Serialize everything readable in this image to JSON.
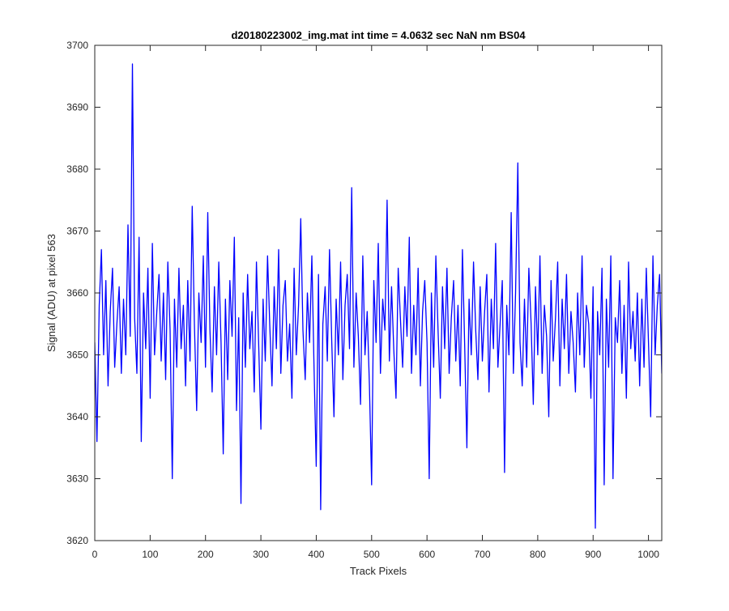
{
  "chart_data": {
    "type": "line",
    "title": "d20180223002_img.mat int time = 4.0632 sec  NaN nm BS04",
    "xlabel": "Track Pixels",
    "ylabel": "Signal (ADU) at pixel 563",
    "xlim": [
      0,
      1024
    ],
    "ylim": [
      3620,
      3700
    ],
    "x_ticks": [
      0,
      100,
      200,
      300,
      400,
      500,
      600,
      700,
      800,
      900,
      1000
    ],
    "y_ticks": [
      3620,
      3630,
      3640,
      3650,
      3660,
      3670,
      3680,
      3690,
      3700
    ],
    "grid": false,
    "line_color": "#0000ff",
    "series": [
      {
        "sampling_note": "approximate trace, one estimated value per 4 track pixels",
        "x_start": 0,
        "x_step": 4,
        "values": [
          3652,
          3636,
          3658,
          3667,
          3650,
          3662,
          3645,
          3657,
          3664,
          3648,
          3655,
          3661,
          3647,
          3659,
          3650,
          3671,
          3653,
          3697,
          3656,
          3647,
          3669,
          3636,
          3660,
          3651,
          3664,
          3643,
          3668,
          3650,
          3657,
          3663,
          3649,
          3660,
          3646,
          3665,
          3654,
          3630,
          3659,
          3648,
          3664,
          3651,
          3658,
          3645,
          3662,
          3649,
          3674,
          3655,
          3641,
          3660,
          3652,
          3666,
          3648,
          3673,
          3654,
          3644,
          3661,
          3650,
          3665,
          3652,
          3634,
          3659,
          3646,
          3662,
          3653,
          3669,
          3641,
          3656,
          3626,
          3660,
          3648,
          3663,
          3651,
          3657,
          3644,
          3665,
          3652,
          3638,
          3659,
          3649,
          3666,
          3655,
          3645,
          3661,
          3651,
          3667,
          3647,
          3658,
          3662,
          3649,
          3655,
          3643,
          3664,
          3650,
          3658,
          3672,
          3654,
          3646,
          3660,
          3652,
          3666,
          3648,
          3632,
          3663,
          3625,
          3655,
          3661,
          3649,
          3667,
          3652,
          3640,
          3659,
          3650,
          3665,
          3646,
          3658,
          3663,
          3651,
          3677,
          3648,
          3660,
          3653,
          3642,
          3666,
          3650,
          3657,
          3645,
          3629,
          3662,
          3652,
          3668,
          3647,
          3659,
          3654,
          3675,
          3649,
          3661,
          3651,
          3643,
          3664,
          3656,
          3648,
          3661,
          3653,
          3669,
          3647,
          3658,
          3650,
          3664,
          3645,
          3657,
          3662,
          3652,
          3630,
          3660,
          3648,
          3666,
          3654,
          3643,
          3661,
          3651,
          3664,
          3647,
          3656,
          3662,
          3649,
          3658,
          3645,
          3667,
          3652,
          3635,
          3659,
          3650,
          3665,
          3654,
          3646,
          3661,
          3649,
          3657,
          3663,
          3644,
          3659,
          3651,
          3668,
          3648,
          3655,
          3662,
          3631,
          3658,
          3650,
          3673,
          3647,
          3660,
          3681,
          3652,
          3645,
          3659,
          3648,
          3664,
          3655,
          3642,
          3661,
          3650,
          3666,
          3647,
          3658,
          3653,
          3640,
          3662,
          3649,
          3656,
          3665,
          3645,
          3659,
          3651,
          3663,
          3647,
          3657,
          3652,
          3644,
          3660,
          3650,
          3666,
          3648,
          3658,
          3655,
          3643,
          3661,
          3622,
          3657,
          3650,
          3664,
          3629,
          3659,
          3648,
          3666,
          3630,
          3656,
          3652,
          3662,
          3647,
          3658,
          3643,
          3665,
          3651,
          3657,
          3649,
          3660,
          3645,
          3659,
          3648,
          3664,
          3652,
          3640,
          3666,
          3650,
          3658,
          3663,
          3647,
          3656
        ]
      }
    ]
  }
}
